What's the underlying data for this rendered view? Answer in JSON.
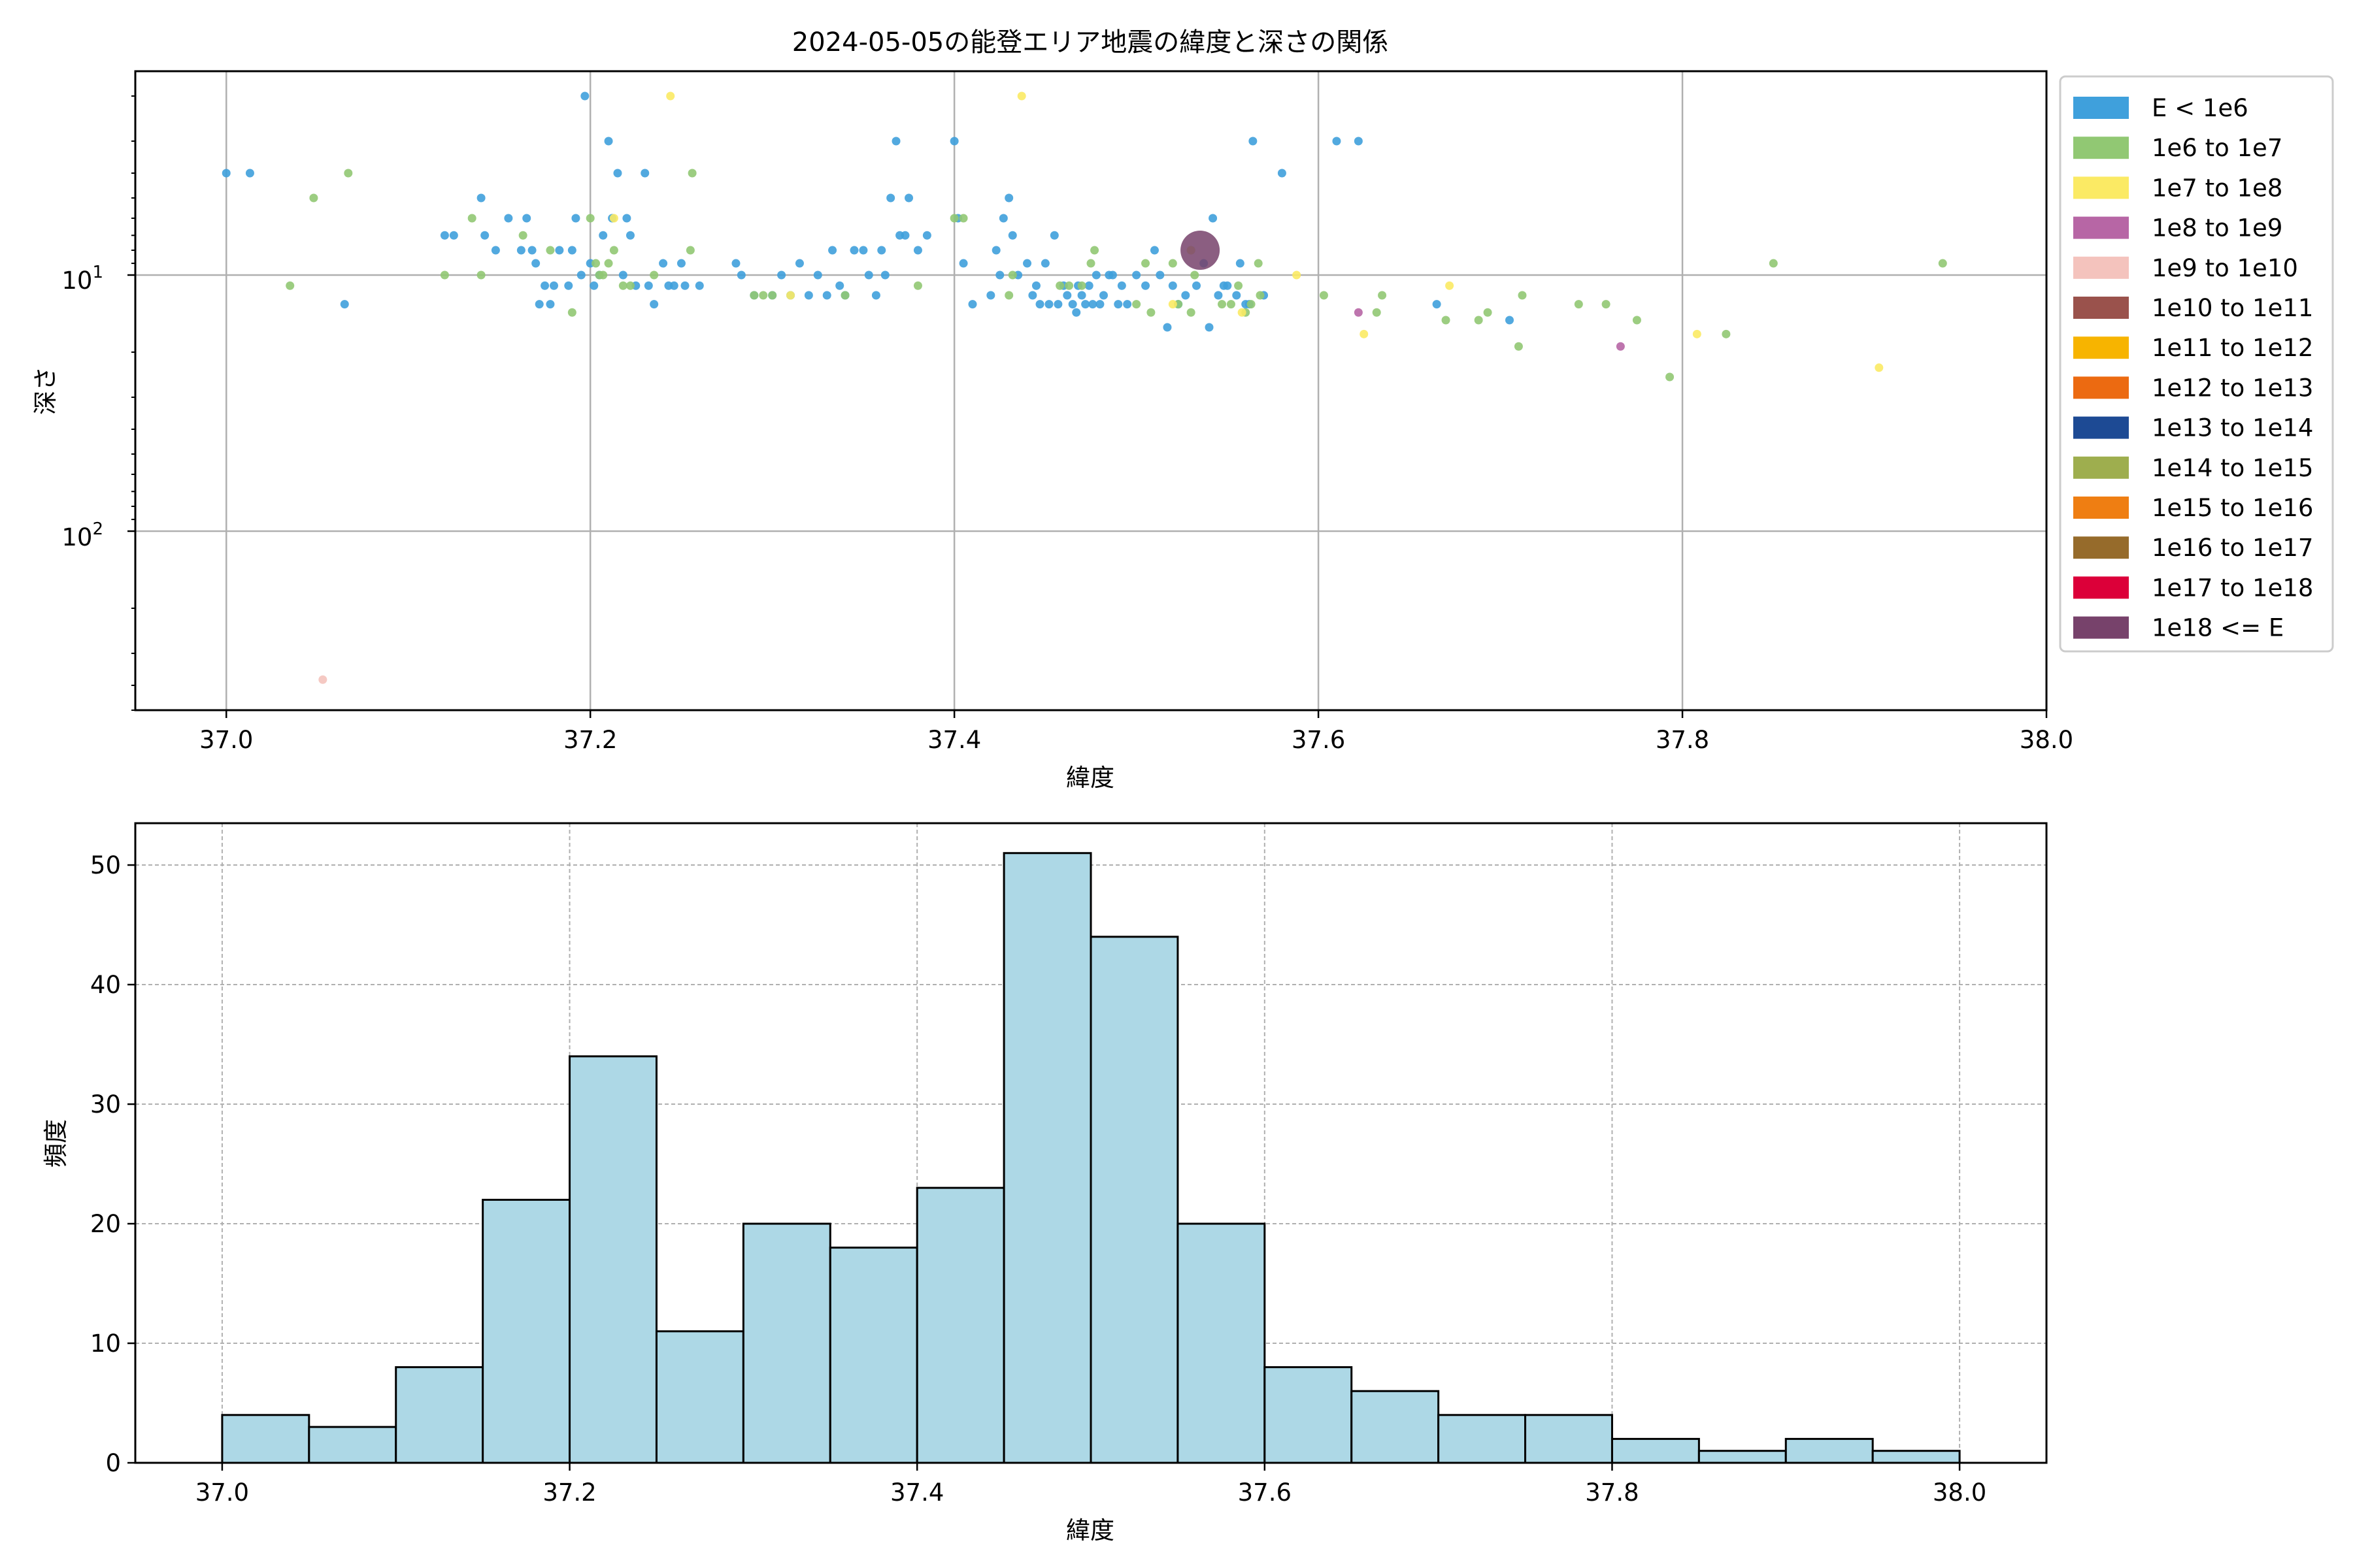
{
  "figure": {
    "title": "2024-05-05の能登エリア地震の緯度と深さの関係"
  },
  "chart_data": [
    {
      "type": "scatter",
      "title": "2024-05-05の能登エリア地震の緯度と深さの関係",
      "xlabel": "緯度",
      "ylabel": "深さ",
      "xlim": [
        36.95,
        38.0
      ],
      "ylim": [
        500,
        1.6
      ],
      "y_scale": "log",
      "y_inverted": true,
      "grid": true,
      "legend_position": "outside-right",
      "x_ticks": [
        "37.0",
        "37.2",
        "37.4",
        "37.6",
        "37.8",
        "38.0"
      ],
      "y_ticks": [
        {
          "base": "10",
          "exp": "1"
        },
        {
          "base": "10",
          "exp": "2"
        }
      ],
      "legend": [
        {
          "label": "E < 1e6",
          "color": "#3fa0dc"
        },
        {
          "label": "1e6 to 1e7",
          "color": "#91c873"
        },
        {
          "label": "1e7 to 1e8",
          "color": "#fbea64"
        },
        {
          "label": "1e8 to 1e9",
          "color": "#b766a5"
        },
        {
          "label": "1e9 to 1e10",
          "color": "#f4c3bd"
        },
        {
          "label": "1e10 to 1e11",
          "color": "#9a524c"
        },
        {
          "label": "1e11 to 1e12",
          "color": "#f7b400"
        },
        {
          "label": "1e12 to 1e13",
          "color": "#ec6a11"
        },
        {
          "label": "1e13 to 1e14",
          "color": "#1d4a94"
        },
        {
          "label": "1e14 to 1e15",
          "color": "#9eae4e"
        },
        {
          "label": "1e15 to 1e16",
          "color": "#ef7e12"
        },
        {
          "label": "1e16 to 1e17",
          "color": "#966b2b"
        },
        {
          "label": "1e17 to 1e18",
          "color": "#dc0039"
        },
        {
          "label": "1e18 <= E",
          "color": "#77426b"
        }
      ],
      "series": [
        {
          "class": 0,
          "points": [
            [
              37.0,
              4
            ],
            [
              37.013,
              4
            ],
            [
              37.065,
              13
            ],
            [
              37.12,
              7
            ],
            [
              37.125,
              7
            ],
            [
              37.14,
              5
            ],
            [
              37.142,
              7
            ],
            [
              37.148,
              8
            ],
            [
              37.155,
              6
            ],
            [
              37.162,
              8
            ],
            [
              37.165,
              6
            ],
            [
              37.168,
              8
            ],
            [
              37.17,
              9
            ],
            [
              37.172,
              13
            ],
            [
              37.175,
              11
            ],
            [
              37.178,
              13
            ],
            [
              37.18,
              11
            ],
            [
              37.183,
              8
            ],
            [
              37.188,
              11
            ],
            [
              37.19,
              8
            ],
            [
              37.192,
              6
            ],
            [
              37.195,
              10
            ],
            [
              37.197,
              2
            ],
            [
              37.2,
              9
            ],
            [
              37.202,
              11
            ],
            [
              37.205,
              10
            ],
            [
              37.207,
              7
            ],
            [
              37.21,
              3
            ],
            [
              37.212,
              6
            ],
            [
              37.215,
              4
            ],
            [
              37.218,
              10
            ],
            [
              37.22,
              6
            ],
            [
              37.222,
              7
            ],
            [
              37.225,
              11
            ],
            [
              37.23,
              4
            ],
            [
              37.232,
              11
            ],
            [
              37.235,
              13
            ],
            [
              37.24,
              9
            ],
            [
              37.243,
              11
            ],
            [
              37.246,
              11
            ],
            [
              37.25,
              9
            ],
            [
              37.252,
              11
            ],
            [
              37.26,
              11
            ],
            [
              37.28,
              9
            ],
            [
              37.283,
              10
            ],
            [
              37.29,
              12
            ],
            [
              37.3,
              12
            ],
            [
              37.305,
              10
            ],
            [
              37.31,
              12
            ],
            [
              37.315,
              9
            ],
            [
              37.32,
              12
            ],
            [
              37.325,
              10
            ],
            [
              37.33,
              12
            ],
            [
              37.333,
              8
            ],
            [
              37.337,
              11
            ],
            [
              37.34,
              12
            ],
            [
              37.345,
              8
            ],
            [
              37.35,
              8
            ],
            [
              37.353,
              10
            ],
            [
              37.357,
              12
            ],
            [
              37.36,
              8
            ],
            [
              37.362,
              10
            ],
            [
              37.365,
              5
            ],
            [
              37.368,
              3
            ],
            [
              37.37,
              7
            ],
            [
              37.373,
              7
            ],
            [
              37.375,
              5
            ],
            [
              37.38,
              8
            ],
            [
              37.385,
              7
            ],
            [
              37.4,
              3
            ],
            [
              37.402,
              6
            ],
            [
              37.405,
              9
            ],
            [
              37.41,
              13
            ],
            [
              37.42,
              12
            ],
            [
              37.423,
              8
            ],
            [
              37.425,
              10
            ],
            [
              37.427,
              6
            ],
            [
              37.43,
              5
            ],
            [
              37.432,
              7
            ],
            [
              37.435,
              10
            ],
            [
              37.44,
              9
            ],
            [
              37.443,
              12
            ],
            [
              37.445,
              11
            ],
            [
              37.447,
              13
            ],
            [
              37.45,
              9
            ],
            [
              37.452,
              13
            ],
            [
              37.455,
              7
            ],
            [
              37.457,
              13
            ],
            [
              37.46,
              11
            ],
            [
              37.462,
              12
            ],
            [
              37.465,
              13
            ],
            [
              37.467,
              14
            ],
            [
              37.468,
              11
            ],
            [
              37.47,
              12
            ],
            [
              37.472,
              13
            ],
            [
              37.474,
              11
            ],
            [
              37.476,
              13
            ],
            [
              37.478,
              10
            ],
            [
              37.48,
              13
            ],
            [
              37.482,
              12
            ],
            [
              37.485,
              10
            ],
            [
              37.487,
              10
            ],
            [
              37.49,
              13
            ],
            [
              37.492,
              11
            ],
            [
              37.495,
              13
            ],
            [
              37.5,
              10
            ],
            [
              37.505,
              11
            ],
            [
              37.51,
              8
            ],
            [
              37.513,
              10
            ],
            [
              37.517,
              16
            ],
            [
              37.52,
              11
            ],
            [
              37.523,
              13
            ],
            [
              37.527,
              12
            ],
            [
              37.53,
              8
            ],
            [
              37.533,
              11
            ],
            [
              37.537,
              9
            ],
            [
              37.54,
              16
            ],
            [
              37.542,
              6
            ],
            [
              37.545,
              12
            ],
            [
              37.548,
              11
            ],
            [
              37.55,
              11
            ],
            [
              37.555,
              12
            ],
            [
              37.557,
              9
            ],
            [
              37.56,
              13
            ],
            [
              37.562,
              13
            ],
            [
              37.564,
              3
            ],
            [
              37.57,
              12
            ],
            [
              37.58,
              4
            ],
            [
              37.61,
              3
            ],
            [
              37.622,
              3
            ],
            [
              37.665,
              13
            ],
            [
              37.705,
              15
            ]
          ]
        },
        {
          "class": 1,
          "points": [
            [
              37.035,
              11
            ],
            [
              37.048,
              5
            ],
            [
              37.067,
              4
            ],
            [
              37.12,
              10
            ],
            [
              37.135,
              6
            ],
            [
              37.14,
              10
            ],
            [
              37.163,
              7
            ],
            [
              37.178,
              8
            ],
            [
              37.19,
              14
            ],
            [
              37.2,
              6
            ],
            [
              37.203,
              9
            ],
            [
              37.205,
              10
            ],
            [
              37.207,
              10
            ],
            [
              37.21,
              9
            ],
            [
              37.213,
              8
            ],
            [
              37.218,
              11
            ],
            [
              37.222,
              11
            ],
            [
              37.235,
              10
            ],
            [
              37.255,
              8
            ],
            [
              37.256,
              4
            ],
            [
              37.29,
              12
            ],
            [
              37.295,
              12
            ],
            [
              37.3,
              12
            ],
            [
              37.34,
              12
            ],
            [
              37.38,
              11
            ],
            [
              37.4,
              6
            ],
            [
              37.405,
              6
            ],
            [
              37.43,
              12
            ],
            [
              37.432,
              10
            ],
            [
              37.458,
              11
            ],
            [
              37.463,
              11
            ],
            [
              37.47,
              11
            ],
            [
              37.475,
              9
            ],
            [
              37.477,
              8
            ],
            [
              37.5,
              13
            ],
            [
              37.505,
              9
            ],
            [
              37.508,
              14
            ],
            [
              37.52,
              9
            ],
            [
              37.523,
              13
            ],
            [
              37.53,
              14
            ],
            [
              37.532,
              10
            ],
            [
              37.547,
              13
            ],
            [
              37.552,
              13
            ],
            [
              37.556,
              11
            ],
            [
              37.56,
              14
            ],
            [
              37.563,
              13
            ],
            [
              37.567,
              9
            ],
            [
              37.568,
              12
            ],
            [
              37.603,
              12
            ],
            [
              37.632,
              14
            ],
            [
              37.635,
              12
            ],
            [
              37.67,
              15
            ],
            [
              37.688,
              15
            ],
            [
              37.693,
              14
            ],
            [
              37.71,
              19
            ],
            [
              37.712,
              12
            ],
            [
              37.743,
              13
            ],
            [
              37.758,
              13
            ],
            [
              37.775,
              15
            ],
            [
              37.793,
              25
            ],
            [
              37.824,
              17
            ],
            [
              37.85,
              9
            ],
            [
              37.943,
              9
            ]
          ]
        },
        {
          "class": 2,
          "points": [
            [
              37.213,
              6
            ],
            [
              37.244,
              2
            ],
            [
              37.31,
              12
            ],
            [
              37.437,
              2
            ],
            [
              37.52,
              13
            ],
            [
              37.53,
              8
            ],
            [
              37.558,
              14
            ],
            [
              37.588,
              10
            ],
            [
              37.625,
              17
            ],
            [
              37.672,
              11
            ],
            [
              37.808,
              17
            ],
            [
              37.908,
              23
            ]
          ]
        },
        {
          "class": 3,
          "points": [
            [
              37.622,
              14
            ],
            [
              37.766,
              19
            ]
          ]
        },
        {
          "class": 4,
          "points": [
            [
              37.053,
              380
            ]
          ]
        },
        {
          "class": 13,
          "points": [
            [
              37.535,
              8
            ]
          ]
        }
      ]
    },
    {
      "type": "bar",
      "title": "",
      "xlabel": "緯度",
      "ylabel": "頻度",
      "xlim": [
        36.95,
        38.05
      ],
      "ylim": [
        0,
        53.5
      ],
      "grid": true,
      "bar_color": "#add8e6",
      "edge_color": "#000000",
      "x_ticks": [
        "37.0",
        "37.2",
        "37.4",
        "37.6",
        "37.8",
        "38.0"
      ],
      "y_ticks": [
        "0",
        "10",
        "20",
        "30",
        "40",
        "50"
      ],
      "bin_edges": [
        37.0,
        37.05,
        37.1,
        37.15,
        37.2,
        37.25,
        37.3,
        37.35,
        37.4,
        37.45,
        37.5,
        37.55,
        37.6,
        37.65,
        37.7,
        37.75,
        37.8,
        37.85,
        37.9,
        37.95,
        38.0
      ],
      "values": [
        4,
        3,
        8,
        22,
        34,
        11,
        20,
        18,
        23,
        51,
        44,
        20,
        8,
        6,
        4,
        4,
        2,
        1,
        2,
        1
      ]
    }
  ]
}
